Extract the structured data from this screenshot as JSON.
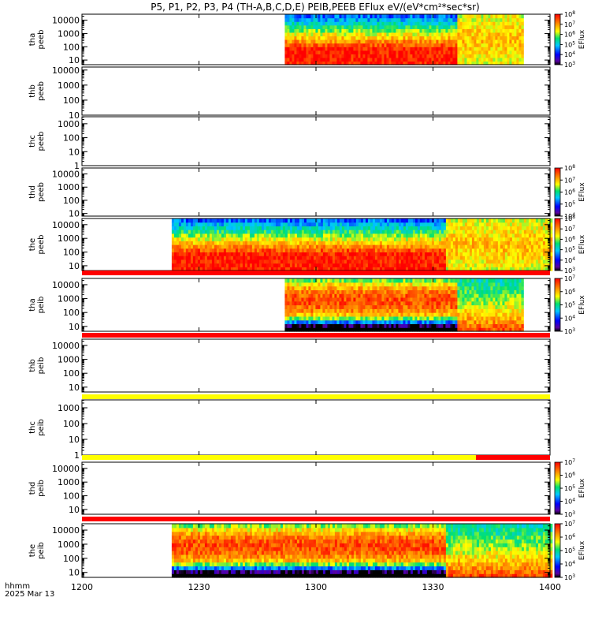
{
  "title": "P5, P1, P2, P3, P4 (TH-A,B,C,D,E) PEIB,PEEB EFlux eV/(eV*cm²*sec*sr)",
  "chart_data": {
    "type": "heatmap",
    "title": "P5, P1, P2, P3, P4 (TH-A,B,C,D,E) PEIB,PEEB EFlux eV/(eV*cm²*sec*sr)",
    "x_axis": {
      "label": "hhmm",
      "date_label": "2025 Mar 13",
      "range": [
        "12:00",
        "14:00"
      ],
      "tick_labels": [
        "1200",
        "1230",
        "1300",
        "1330",
        "1400"
      ],
      "tick_values_min": [
        0,
        30,
        60,
        90,
        120
      ]
    },
    "colorbar_label": "EFlux",
    "panels": [
      {
        "label": "tha\npeeb",
        "line1": "tha",
        "line2": "peeb",
        "y_ticks": [
          "10",
          "100",
          "1000",
          "10000"
        ],
        "y_log_range": [
          0.65,
          4.45
        ],
        "data_range_min": [
          52,
          113
        ],
        "cb_exponents": [
          3,
          8
        ],
        "colorbar": true
      },
      {
        "label": "thb\npeeb",
        "line1": "thb",
        "line2": "peeb",
        "y_ticks": [
          "10",
          "100",
          "1000",
          "10000"
        ],
        "y_log_range": [
          1.0,
          4.2
        ],
        "data_range_min": null,
        "colorbar": false
      },
      {
        "label": "thc\npeeb",
        "line1": "thc",
        "line2": "peeb",
        "y_ticks": [
          "1",
          "10",
          "100",
          "1000"
        ],
        "y_log_range": [
          0,
          3.5
        ],
        "data_range_min": null,
        "colorbar": false
      },
      {
        "label": "thd\npeeb",
        "line1": "thd",
        "line2": "peeb",
        "y_ticks": [
          "10",
          "100",
          "1000",
          "10000"
        ],
        "y_log_range": [
          0.8,
          4.45
        ],
        "data_range_min": null,
        "cb_exponents": [
          4,
          8
        ],
        "colorbar": true
      },
      {
        "label": "the\npeeb",
        "line1": "the",
        "line2": "peeb",
        "y_ticks": [
          "10",
          "100",
          "1000",
          "10000"
        ],
        "y_log_range": [
          0.65,
          4.45
        ],
        "data_range_min": [
          23,
          120
        ],
        "cb_exponents": [
          3,
          8
        ],
        "colorbar": true
      },
      {
        "label": "tha\npeib",
        "line1": "tha",
        "line2": "peib",
        "y_ticks": [
          "10",
          "100",
          "1000",
          "10000"
        ],
        "y_log_range": [
          0.65,
          4.45
        ],
        "data_range_min": [
          52,
          113
        ],
        "cb_exponents": [
          3,
          7
        ],
        "colorbar": true
      },
      {
        "label": "thb\npeib",
        "line1": "thb",
        "line2": "peib",
        "y_ticks": [
          "10",
          "100",
          "1000",
          "10000"
        ],
        "y_log_range": [
          0.65,
          4.45
        ],
        "data_range_min": null,
        "colorbar": false
      },
      {
        "label": "thc\npeib",
        "line1": "thc",
        "line2": "peib",
        "y_ticks": [
          "1",
          "10",
          "100",
          "1000"
        ],
        "y_log_range": [
          0,
          3.5
        ],
        "data_range_min": null,
        "colorbar": false
      },
      {
        "label": "thd\npeib",
        "line1": "thd",
        "line2": "peib",
        "y_ticks": [
          "10",
          "100",
          "1000",
          "10000"
        ],
        "y_log_range": [
          0.65,
          4.45
        ],
        "data_range_min": null,
        "cb_exponents": [
          3,
          7
        ],
        "colorbar": true
      },
      {
        "label": "the\npeib",
        "line1": "the",
        "line2": "peib",
        "y_ticks": [
          "10",
          "100",
          "1000",
          "10000"
        ],
        "y_log_range": [
          0.65,
          4.45
        ],
        "data_range_min": [
          23,
          120
        ],
        "cb_exponents": [
          3,
          7
        ],
        "colorbar": true
      }
    ],
    "status_bars": [
      {
        "after_panel": 4,
        "segments": [
          {
            "from_min": 0,
            "to_min": 120,
            "color": "#ff0000"
          }
        ]
      },
      {
        "after_panel": 5,
        "segments": [
          {
            "from_min": 0,
            "to_min": 120,
            "color": "#ff0000"
          }
        ]
      },
      {
        "after_panel": 6,
        "segments": [
          {
            "from_min": 0,
            "to_min": 120,
            "color": "#ffff00"
          }
        ]
      },
      {
        "after_panel": 7,
        "segments": [
          {
            "from_min": 0,
            "to_min": 101,
            "color": "#ffff00"
          },
          {
            "from_min": 101,
            "to_min": 120,
            "color": "#ff0000"
          }
        ]
      },
      {
        "after_panel": 8,
        "segments": [
          {
            "from_min": 0,
            "to_min": 120,
            "color": "#ff0000"
          }
        ]
      }
    ]
  }
}
